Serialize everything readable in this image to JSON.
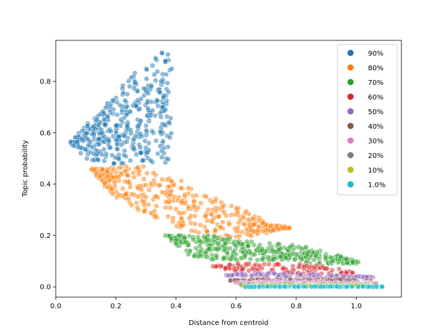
{
  "chart_data": {
    "type": "scatter",
    "title": "",
    "xlabel": "Distance from centroid",
    "ylabel": "Topic probability",
    "xlim": [
      0.0,
      1.15
    ],
    "ylim": [
      -0.04,
      0.96
    ],
    "xticks": [
      "0.0",
      "0.2",
      "0.4",
      "0.6",
      "0.8",
      "1.0"
    ],
    "yticks": [
      "0.0",
      "0.2",
      "0.4",
      "0.6",
      "0.8"
    ],
    "grid": false,
    "legend_position": "top-right",
    "series": [
      {
        "name": "90%",
        "color": "#1f77b4",
        "band": [
          [
            0.05,
            0.56
          ],
          [
            0.1,
            0.5,
            0.62
          ],
          [
            0.15,
            0.47,
            0.69
          ],
          [
            0.2,
            0.47,
            0.75
          ],
          [
            0.25,
            0.47,
            0.82
          ],
          [
            0.3,
            0.48,
            0.87
          ],
          [
            0.35,
            0.48,
            0.92
          ],
          [
            0.38,
            0.48,
            0.91
          ]
        ]
      },
      {
        "name": "80%",
        "color": "#ff7f0e",
        "band": [
          [
            0.12,
            0.46
          ],
          [
            0.2,
            0.34,
            0.47
          ],
          [
            0.3,
            0.28,
            0.47
          ],
          [
            0.4,
            0.23,
            0.42
          ],
          [
            0.5,
            0.2,
            0.37
          ],
          [
            0.6,
            0.18,
            0.32
          ],
          [
            0.7,
            0.21,
            0.25
          ],
          [
            0.78,
            0.23
          ]
        ]
      },
      {
        "name": "70%",
        "color": "#2ca02c",
        "band": [
          [
            0.37,
            0.2
          ],
          [
            0.45,
            0.12,
            0.2
          ],
          [
            0.55,
            0.1,
            0.2
          ],
          [
            0.65,
            0.1,
            0.18
          ],
          [
            0.75,
            0.1,
            0.17
          ],
          [
            0.85,
            0.09,
            0.15
          ],
          [
            0.95,
            0.09,
            0.12
          ],
          [
            1.0,
            0.09,
            0.1
          ]
        ]
      },
      {
        "name": "60%",
        "color": "#d62728",
        "band": [
          [
            0.52,
            0.08
          ],
          [
            0.6,
            0.06,
            0.09
          ],
          [
            0.7,
            0.06,
            0.09
          ],
          [
            0.8,
            0.05,
            0.09
          ],
          [
            0.9,
            0.05,
            0.08
          ],
          [
            1.0,
            0.05,
            0.06
          ]
        ]
      },
      {
        "name": "50%",
        "color": "#9467bd",
        "band": [
          [
            0.57,
            0.045
          ],
          [
            0.65,
            0.035,
            0.055
          ],
          [
            0.75,
            0.035,
            0.055
          ],
          [
            0.85,
            0.035,
            0.05
          ],
          [
            0.95,
            0.035,
            0.045
          ],
          [
            1.05,
            0.035,
            0.04
          ]
        ]
      },
      {
        "name": "40%",
        "color": "#8c564b",
        "band": [
          [
            0.58,
            0.025
          ],
          [
            0.65,
            0.02,
            0.03
          ],
          [
            0.75,
            0.02,
            0.03
          ],
          [
            0.85,
            0.02,
            0.03
          ],
          [
            0.95,
            0.02,
            0.03
          ],
          [
            1.05,
            0.02,
            0.025
          ]
        ]
      },
      {
        "name": "30%",
        "color": "#e377c2",
        "band": [
          [
            0.6,
            0.015
          ],
          [
            0.7,
            0.012,
            0.02
          ],
          [
            0.8,
            0.012,
            0.02
          ],
          [
            0.9,
            0.012,
            0.02
          ],
          [
            1.0,
            0.012,
            0.018
          ],
          [
            1.07,
            0.012,
            0.015
          ]
        ]
      },
      {
        "name": "20%",
        "color": "#7f7f7f",
        "band": [
          [
            0.61,
            0.01
          ],
          [
            0.7,
            0.008,
            0.012
          ],
          [
            0.8,
            0.008,
            0.012
          ],
          [
            0.9,
            0.008,
            0.012
          ],
          [
            1.0,
            0.008,
            0.012
          ],
          [
            1.07,
            0.008,
            0.01
          ]
        ]
      },
      {
        "name": "10%",
        "color": "#bcbd22",
        "band": [
          [
            0.62,
            0.005
          ],
          [
            0.75,
            0.004,
            0.007
          ],
          [
            0.85,
            0.004,
            0.007
          ],
          [
            0.95,
            0.004,
            0.007
          ],
          [
            1.05,
            0.004,
            0.006
          ]
        ]
      },
      {
        "name": "1.0%",
        "color": "#17becf",
        "band": [
          [
            0.63,
            0.0
          ],
          [
            0.7,
            0.0,
            0.002
          ],
          [
            0.8,
            0.0,
            0.002
          ],
          [
            0.9,
            0.0,
            0.002
          ],
          [
            1.0,
            0.0,
            0.002
          ],
          [
            1.1,
            0.0,
            0.001
          ]
        ]
      }
    ]
  }
}
